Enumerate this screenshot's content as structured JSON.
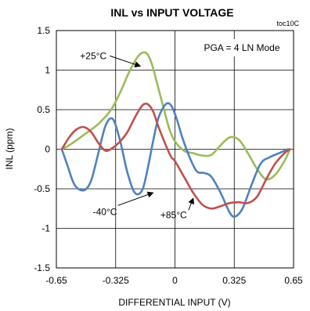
{
  "chart_data": {
    "type": "line",
    "title": "INL vs INPUT VOLTAGE",
    "figure_id": "toc10C",
    "xlabel": "DIFFERENTIAL INPUT (V)",
    "ylabel": "INL (ppm)",
    "xlim": [
      -0.65,
      0.65
    ],
    "ylim": [
      -1.5,
      1.5
    ],
    "x_ticks": [
      -0.65,
      -0.325,
      0,
      0.325,
      0.65
    ],
    "x_tick_labels": [
      "-0.65",
      "-0.325",
      "0",
      "0.325",
      "0.65"
    ],
    "y_ticks": [
      1.5,
      1,
      0.5,
      0,
      -0.5,
      -1,
      -1.5
    ],
    "y_tick_labels": [
      "1.5",
      "1",
      "0.5",
      "0",
      "-0.5",
      "-1",
      "-1.5"
    ],
    "grid": true,
    "annotation_box": "PGA = 4 LN Mode",
    "series": [
      {
        "name": "+25°C",
        "color": "#9BBB59",
        "x": [
          -0.62,
          -0.58,
          -0.5,
          -0.42,
          -0.35,
          -0.3,
          -0.25,
          -0.2,
          -0.16,
          -0.13,
          -0.1,
          -0.06,
          -0.03,
          0,
          0.05,
          0.1,
          0.15,
          0.2,
          0.25,
          0.3,
          0.35,
          0.4,
          0.45,
          0.5,
          0.55,
          0.6,
          0.63
        ],
        "y": [
          0,
          0.05,
          0.18,
          0.32,
          0.5,
          0.72,
          0.98,
          1.18,
          1.22,
          1.1,
          0.85,
          0.5,
          0.25,
          0.1,
          -0.02,
          -0.05,
          -0.08,
          -0.07,
          0.05,
          0.15,
          0.12,
          -0.05,
          -0.25,
          -0.38,
          -0.32,
          -0.15,
          0
        ]
      },
      {
        "name": "-40°C",
        "color": "#4F81BD",
        "x": [
          -0.62,
          -0.59,
          -0.55,
          -0.5,
          -0.46,
          -0.42,
          -0.38,
          -0.34,
          -0.3,
          -0.26,
          -0.22,
          -0.18,
          -0.15,
          -0.12,
          -0.09,
          -0.05,
          -0.02,
          0.01,
          0.04,
          0.08,
          0.12,
          0.16,
          0.2,
          0.25,
          0.3,
          0.33,
          0.37,
          0.42,
          0.47,
          0.52,
          0.57,
          0.62
        ],
        "y": [
          0,
          -0.2,
          -0.45,
          -0.52,
          -0.4,
          -0.05,
          0.3,
          0.38,
          0.1,
          -0.3,
          -0.55,
          -0.52,
          -0.25,
          0.1,
          0.4,
          0.57,
          0.55,
          0.38,
          0.15,
          -0.1,
          -0.28,
          -0.3,
          -0.35,
          -0.55,
          -0.8,
          -0.85,
          -0.75,
          -0.45,
          -0.18,
          -0.1,
          -0.05,
          0
        ]
      },
      {
        "name": "+85°C",
        "color": "#C0504D",
        "x": [
          -0.62,
          -0.58,
          -0.54,
          -0.5,
          -0.46,
          -0.42,
          -0.38,
          -0.34,
          -0.3,
          -0.26,
          -0.22,
          -0.18,
          -0.15,
          -0.12,
          -0.09,
          -0.05,
          -0.02,
          0,
          0.05,
          0.1,
          0.15,
          0.2,
          0.25,
          0.3,
          0.35,
          0.4,
          0.45,
          0.5,
          0.55,
          0.6,
          0.63
        ],
        "y": [
          0,
          0.15,
          0.25,
          0.28,
          0.22,
          0.08,
          -0.02,
          0.02,
          0.1,
          0.22,
          0.4,
          0.55,
          0.57,
          0.48,
          0.28,
          0.05,
          -0.1,
          -0.15,
          -0.35,
          -0.55,
          -0.7,
          -0.75,
          -0.72,
          -0.68,
          -0.67,
          -0.68,
          -0.6,
          -0.38,
          -0.18,
          -0.05,
          0
        ]
      }
    ],
    "annotations": [
      {
        "text": "+25°C",
        "series": "+25°C",
        "arrow_to": [
          -0.19,
          1.05
        ],
        "label_at": [
          -0.52,
          1.14
        ]
      },
      {
        "text": "-40°C",
        "series": "-40°C",
        "arrow_to": [
          -0.12,
          -0.55
        ],
        "label_at": [
          -0.45,
          -0.83
        ]
      },
      {
        "text": "+85°C",
        "series": "+85°C",
        "arrow_to": [
          0.1,
          -0.62
        ],
        "label_at": [
          -0.08,
          -0.87
        ]
      }
    ]
  }
}
